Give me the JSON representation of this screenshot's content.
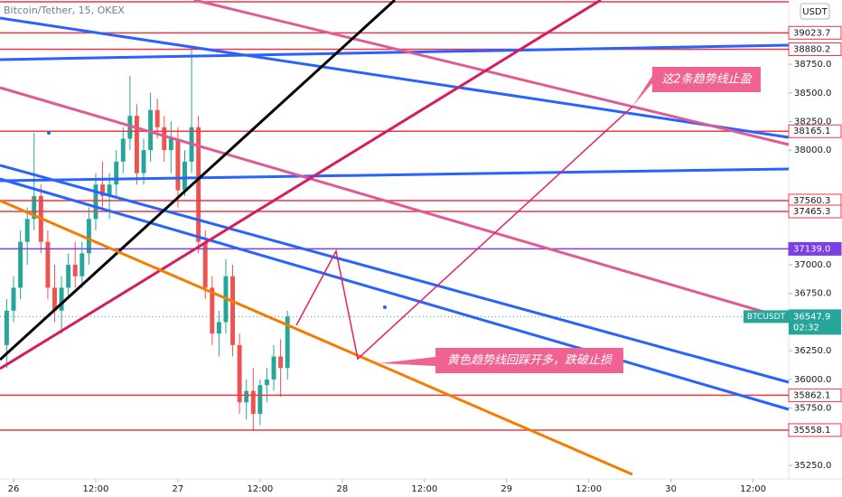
{
  "chart_data": {
    "type": "candlestick",
    "title": "Bitcoin/Tether, 15, OKEX",
    "currency": "USDT",
    "symbol_label": "BTCUSDT",
    "countdown": "02:32",
    "up_color": "#26a69a",
    "down_color": "#ef5350",
    "x": [
      -1,
      0,
      1,
      2,
      3,
      4,
      5,
      6,
      7,
      8,
      9,
      10,
      11,
      12,
      13,
      14,
      15,
      16,
      17,
      18,
      19,
      20,
      21,
      22,
      23,
      24,
      25,
      26,
      27,
      28,
      29,
      30,
      31,
      32,
      33,
      34,
      35,
      36,
      37,
      38,
      39,
      40
    ],
    "open": [
      36300,
      36600,
      36800,
      37200,
      37400,
      37600,
      37200,
      36800,
      36600,
      36800,
      37000,
      36900,
      37100,
      37400,
      37700,
      37600,
      37700,
      37900,
      38100,
      38300,
      37800,
      38000,
      38350,
      38200,
      38000,
      38100,
      37650,
      37900,
      38200,
      37200,
      36800,
      36400,
      36500,
      36900,
      36300,
      35800,
      35900,
      35700,
      35950,
      36000,
      36200,
      36100
    ],
    "high": [
      36700,
      36900,
      37300,
      37500,
      38150,
      37700,
      37300,
      37000,
      36900,
      37100,
      37200,
      37200,
      37500,
      37800,
      37900,
      37800,
      38000,
      38200,
      38650,
      38400,
      38100,
      38500,
      38450,
      38300,
      38250,
      38200,
      38000,
      38880,
      38300,
      37300,
      36900,
      36600,
      37050,
      37000,
      36400,
      36000,
      36100,
      36000,
      36100,
      36300,
      36350,
      36600
    ],
    "low": [
      36100,
      36500,
      36700,
      37000,
      37300,
      37100,
      36700,
      36500,
      36400,
      36700,
      36800,
      36800,
      37000,
      37300,
      37500,
      37400,
      37600,
      37800,
      38000,
      37700,
      37700,
      37900,
      38100,
      37900,
      37800,
      37500,
      37600,
      37800,
      37100,
      36700,
      36300,
      36200,
      36400,
      36200,
      35700,
      35650,
      35550,
      35600,
      35800,
      35900,
      35850,
      36000
    ],
    "close": [
      36600,
      36800,
      37200,
      37400,
      37600,
      37200,
      36800,
      36600,
      36800,
      37000,
      36900,
      37100,
      37400,
      37700,
      37600,
      37700,
      37900,
      38100,
      38300,
      37800,
      38000,
      38350,
      38200,
      38000,
      38100,
      37650,
      37900,
      38200,
      37200,
      36800,
      36400,
      36500,
      36900,
      36300,
      35800,
      35900,
      35700,
      35950,
      36000,
      36200,
      36100,
      36547.9
    ],
    "xlim": [
      -1.98,
      113.2
    ],
    "ylim": [
      35132,
      39310
    ],
    "xticks": [
      {
        "value": 0,
        "label": "26"
      },
      {
        "value": 12,
        "label": "12:00"
      },
      {
        "value": 24,
        "label": "27"
      },
      {
        "value": 36,
        "label": "12:00"
      },
      {
        "value": 48,
        "label": "28"
      },
      {
        "value": 60,
        "label": "12:00"
      },
      {
        "value": 72,
        "label": "29"
      },
      {
        "value": 84,
        "label": "12:00"
      },
      {
        "value": 96,
        "label": "30"
      },
      {
        "value": 108,
        "label": "12:00"
      }
    ],
    "yticks": [
      {
        "value": 38750,
        "label": "38750.0"
      },
      {
        "value": 38500,
        "label": "38500.0"
      },
      {
        "value": 38250,
        "label": "38250.0"
      },
      {
        "value": 38000,
        "label": "38000.0"
      },
      {
        "value": 37000,
        "label": "37000.0"
      },
      {
        "value": 36750,
        "label": "36750.0"
      },
      {
        "value": 36250,
        "label": "36250.0"
      },
      {
        "value": 36000,
        "label": "36000.0"
      },
      {
        "value": 35750,
        "label": "35750.0"
      },
      {
        "value": 35250,
        "label": "35250.0"
      }
    ],
    "levels": [
      {
        "value": 39023.7,
        "color": "#f23645"
      },
      {
        "value": 38880.2,
        "color": "#f23645"
      },
      {
        "value": 38165.1,
        "color": "#f23645"
      },
      {
        "value": 37560.3,
        "color": "#f23645"
      },
      {
        "value": 37465.3,
        "color": "#f23645"
      },
      {
        "value": 37139,
        "label": "37139.0",
        "color": "#7b3fe4"
      },
      {
        "value": 35862.1,
        "color": "#f23645"
      },
      {
        "value": 35558.1,
        "color": "#f23645"
      }
    ],
    "annotations": [
      "这2条趋势线止盈",
      "黄色趋势线回踩开多，跌破止损"
    ]
  }
}
